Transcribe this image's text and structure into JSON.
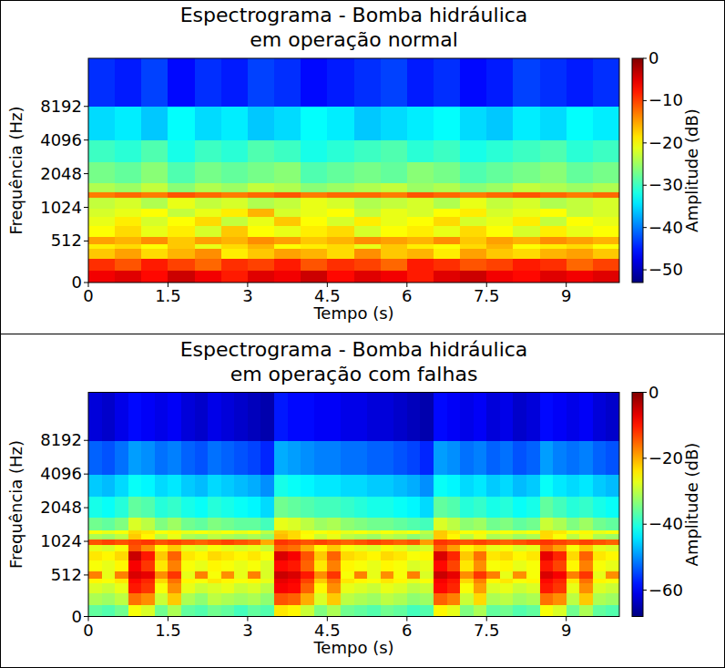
{
  "chart_data": [
    {
      "type": "heatmap",
      "title": "Espectrograma - Bomba hidráulica\nem operação normal",
      "x_label": "Tempo (s)",
      "y_label": "Frequência (Hz)",
      "xlim": [
        0,
        10
      ],
      "xticks": [
        0,
        1.5,
        3,
        4.5,
        6,
        7.5,
        9
      ],
      "ylim": [
        0,
        22050
      ],
      "yticks": [
        0,
        512,
        1024,
        2048,
        4096,
        8192
      ],
      "log": "y",
      "grid": false,
      "x_edges": [
        0,
        0.5,
        1,
        1.5,
        2,
        2.5,
        3,
        3.5,
        4,
        4.5,
        5,
        5.5,
        6,
        6.5,
        7,
        7.5,
        8,
        8.5,
        9,
        9.5,
        10
      ],
      "y_edges": [
        0,
        150,
        300,
        420,
        480,
        560,
        700,
        850,
        1000,
        1250,
        1400,
        1700,
        2600,
        4096,
        8192,
        22050
      ],
      "cells": [
        [
          -6,
          -5,
          -7,
          -4,
          -6,
          -8,
          -5,
          -6,
          -4,
          -7,
          -5,
          -6,
          -8,
          -5,
          -4,
          -6,
          -7,
          -5,
          -6,
          -5
        ],
        [
          -9,
          -11,
          -8,
          -10,
          -12,
          -9,
          -10,
          -8,
          -11,
          -9,
          -10,
          -12,
          -8,
          -9,
          -11,
          -10,
          -8,
          -9,
          -12,
          -10
        ],
        [
          -17,
          -15,
          -18,
          -16,
          -14,
          -19,
          -17,
          -15,
          -16,
          -18,
          -14,
          -17,
          -16,
          -19,
          -15,
          -17,
          -18,
          -16,
          -15,
          -17
        ],
        [
          -19,
          -18,
          -20,
          -17,
          -21,
          -18,
          -16,
          -20,
          -19,
          -18,
          -21,
          -17,
          -19,
          -20,
          -18,
          -16,
          -20,
          -19,
          -18,
          -20
        ],
        [
          -15,
          -16,
          -14,
          -17,
          -15,
          -16,
          -14,
          -15,
          -17,
          -16,
          -14,
          -15,
          -16,
          -14,
          -17,
          -15,
          -16,
          -14,
          -15,
          -16
        ],
        [
          -20,
          -18,
          -21,
          -19,
          -22,
          -17,
          -20,
          -21,
          -19,
          -18,
          -22,
          -20,
          -19,
          -21,
          -18,
          -20,
          -22,
          -19,
          -21,
          -20
        ],
        [
          -21,
          -19,
          -22,
          -20,
          -18,
          -23,
          -21,
          -17,
          -20,
          -22,
          -19,
          -21,
          -20,
          -18,
          -22,
          -21,
          -19,
          -23,
          -20,
          -21
        ],
        [
          -22,
          -21,
          -20,
          -23,
          -21,
          -19,
          -16,
          -22,
          -21,
          -20,
          -23,
          -21,
          -22,
          -20,
          -19,
          -22,
          -21,
          -20,
          -23,
          -22
        ],
        [
          -23,
          -22,
          -24,
          -21,
          -23,
          -22,
          -24,
          -23,
          -21,
          -22,
          -24,
          -23,
          -22,
          -24,
          -21,
          -23,
          -22,
          -24,
          -23,
          -22
        ],
        [
          -13,
          -12,
          -13,
          -11,
          -12,
          -13,
          -12,
          -11,
          -13,
          -12,
          -12,
          -13,
          -11,
          -12,
          -13,
          -12,
          -11,
          -12,
          -13,
          -12
        ],
        [
          -24,
          -25,
          -23,
          -26,
          -24,
          -25,
          -23,
          -24,
          -26,
          -25,
          -24,
          -23,
          -25,
          -24,
          -26,
          -25,
          -23,
          -24,
          -25,
          -24
        ],
        [
          -27,
          -28,
          -26,
          -29,
          -27,
          -28,
          -27,
          -26,
          -29,
          -28,
          -27,
          -28,
          -26,
          -27,
          -29,
          -28,
          -27,
          -26,
          -28,
          -27
        ],
        [
          -30,
          -31,
          -29,
          -32,
          -30,
          -31,
          -29,
          -30,
          -32,
          -31,
          -30,
          -29,
          -31,
          -30,
          -32,
          -31,
          -30,
          -29,
          -31,
          -30
        ],
        [
          -35,
          -34,
          -36,
          -33,
          -35,
          -34,
          -36,
          -35,
          -33,
          -34,
          -36,
          -35,
          -34,
          -33,
          -35,
          -36,
          -34,
          -35,
          -33,
          -34
        ],
        [
          -44,
          -45,
          -43,
          -46,
          -44,
          -45,
          -43,
          -44,
          -46,
          -45,
          -44,
          -43,
          -45,
          -44,
          -46,
          -45,
          -43,
          -44,
          -45,
          -44
        ]
      ],
      "colorbar": {
        "label": "Amplitude (dB)",
        "range": [
          -53,
          0
        ],
        "ticks": [
          {
            "value": 0,
            "label": "0"
          },
          {
            "value": -10,
            "label": "−10"
          },
          {
            "value": -20,
            "label": "−20"
          },
          {
            "value": -30,
            "label": "−30"
          },
          {
            "value": -40,
            "label": "−40"
          },
          {
            "value": -50,
            "label": "−50"
          }
        ]
      }
    },
    {
      "type": "heatmap",
      "title": "Espectrograma - Bomba hidráulica\nem operação com falhas",
      "x_label": "Tempo (s)",
      "y_label": "Frequência (Hz)",
      "xlim": [
        0,
        10
      ],
      "xticks": [
        0,
        1.5,
        3,
        4.5,
        6,
        7.5,
        9
      ],
      "ylim": [
        0,
        22050
      ],
      "yticks": [
        0,
        512,
        1024,
        2048,
        4096,
        8192
      ],
      "log": "y",
      "grid": false,
      "x_edges": [
        0,
        0.25,
        0.5,
        0.75,
        1,
        1.25,
        1.5,
        1.75,
        2,
        2.25,
        2.5,
        2.75,
        3,
        3.25,
        3.5,
        3.75,
        4,
        4.25,
        4.5,
        4.75,
        5,
        5.25,
        5.5,
        5.75,
        6,
        6.25,
        6.5,
        6.75,
        7,
        7.25,
        7.5,
        7.75,
        8,
        8.25,
        8.5,
        8.75,
        9,
        9.25,
        9.5,
        9.75,
        10
      ],
      "y_edges": [
        0,
        150,
        300,
        420,
        480,
        560,
        700,
        850,
        960,
        1080,
        1200,
        1300,
        1700,
        2600,
        4096,
        8192,
        22050
      ],
      "cells": [
        [
          -36,
          -37,
          -35,
          -26,
          -28,
          -35,
          -31,
          -36,
          -37,
          -35,
          -36,
          -38,
          -36,
          -37,
          -24,
          -25,
          -29,
          -34,
          -31,
          -35,
          -36,
          -37,
          -35,
          -36,
          -38,
          -37,
          -25,
          -27,
          -34,
          -31,
          -36,
          -35,
          -37,
          -36,
          -26,
          -28,
          -35,
          -31,
          -36,
          -37
        ],
        [
          -31,
          -32,
          -30,
          -16,
          -18,
          -29,
          -22,
          -31,
          -33,
          -30,
          -31,
          -32,
          -31,
          -33,
          -14,
          -15,
          -20,
          -28,
          -22,
          -30,
          -31,
          -32,
          -30,
          -31,
          -33,
          -32,
          -15,
          -17,
          -29,
          -23,
          -31,
          -30,
          -32,
          -31,
          -16,
          -18,
          -30,
          -22,
          -31,
          -32
        ],
        [
          -28,
          -29,
          -27,
          -10,
          -12,
          -26,
          -18,
          -27,
          -29,
          -28,
          -27,
          -29,
          -28,
          -30,
          -8,
          -9,
          -15,
          -25,
          -18,
          -27,
          -28,
          -29,
          -27,
          -28,
          -30,
          -29,
          -9,
          -11,
          -26,
          -19,
          -28,
          -27,
          -29,
          -28,
          -10,
          -12,
          -27,
          -18,
          -28,
          -29
        ],
        [
          -25,
          -26,
          -24,
          -9,
          -11,
          -23,
          -16,
          -25,
          -26,
          -24,
          -25,
          -26,
          -25,
          -27,
          -7,
          -8,
          -13,
          -22,
          -16,
          -24,
          -25,
          -26,
          -24,
          -25,
          -27,
          -26,
          -8,
          -10,
          -23,
          -17,
          -25,
          -24,
          -26,
          -25,
          -9,
          -11,
          -24,
          -16,
          -25,
          -26
        ],
        [
          -17,
          -27,
          -17,
          -6,
          -7,
          -18,
          -12,
          -27,
          -17,
          -26,
          -18,
          -27,
          -17,
          -28,
          -5,
          -6,
          -10,
          -18,
          -12,
          -26,
          -17,
          -27,
          -18,
          -26,
          -17,
          -28,
          -5,
          -7,
          -18,
          -12,
          -17,
          -27,
          -18,
          -26,
          -6,
          -8,
          -17,
          -12,
          -27,
          -18
        ],
        [
          -26,
          -27,
          -25,
          -8,
          -12,
          -24,
          -17,
          -26,
          -27,
          -25,
          -26,
          -27,
          -26,
          -28,
          -9,
          -10,
          -15,
          -24,
          -17,
          -25,
          -26,
          -27,
          -25,
          -26,
          -28,
          -27,
          -9,
          -13,
          -24,
          -18,
          -26,
          -25,
          -27,
          -26,
          -10,
          -13,
          -25,
          -17,
          -26,
          -27
        ],
        [
          -24,
          -25,
          -23,
          -5,
          -10,
          -22,
          -15,
          -24,
          -25,
          -23,
          -24,
          -25,
          -24,
          -26,
          -6,
          -8,
          -14,
          -22,
          -15,
          -23,
          -24,
          -25,
          -23,
          -24,
          -26,
          -25,
          -6,
          -11,
          -22,
          -16,
          -24,
          -23,
          -25,
          -24,
          -7,
          -11,
          -23,
          -15,
          -24,
          -25
        ],
        [
          -27,
          -28,
          -26,
          -14,
          -18,
          -25,
          -22,
          -27,
          -28,
          -26,
          -27,
          -28,
          -27,
          -29,
          -15,
          -16,
          -20,
          -25,
          -22,
          -26,
          -27,
          -28,
          -26,
          -27,
          -29,
          -28,
          -15,
          -19,
          -25,
          -23,
          -27,
          -26,
          -28,
          -27,
          -16,
          -19,
          -26,
          -22,
          -27,
          -28
        ],
        [
          -14,
          -13,
          -14,
          -13,
          -12,
          -14,
          -13,
          -14,
          -15,
          -14,
          -13,
          -14,
          -15,
          -20,
          -12,
          -13,
          -14,
          -13,
          -14,
          -15,
          -14,
          -13,
          -14,
          -15,
          -14,
          -19,
          -12,
          -13,
          -14,
          -13,
          -14,
          -15,
          -14,
          -13,
          -12,
          -13,
          -14,
          -13,
          -14,
          -15
        ],
        [
          -31,
          -32,
          -30,
          -22,
          -25,
          -30,
          -27,
          -31,
          -32,
          -30,
          -31,
          -32,
          -31,
          -33,
          -21,
          -23,
          -26,
          -29,
          -27,
          -30,
          -31,
          -32,
          -30,
          -31,
          -33,
          -32,
          -22,
          -25,
          -30,
          -27,
          -31,
          -30,
          -32,
          -31,
          -23,
          -26,
          -30,
          -27,
          -31,
          -32
        ],
        [
          -26,
          -27,
          -26,
          -23,
          -24,
          -26,
          -25,
          -27,
          -26,
          -27,
          -26,
          -27,
          -26,
          -30,
          -22,
          -23,
          -25,
          -26,
          -25,
          -27,
          -26,
          -27,
          -26,
          -27,
          -26,
          -30,
          -22,
          -24,
          -26,
          -25,
          -27,
          -26,
          -27,
          -26,
          -23,
          -24,
          -26,
          -25,
          -27,
          -26
        ],
        [
          -35,
          -36,
          -34,
          -28,
          -30,
          -34,
          -32,
          -35,
          -36,
          -34,
          -35,
          -36,
          -36,
          -38,
          -27,
          -28,
          -30,
          -32,
          -31,
          -33,
          -34,
          -35,
          -35,
          -36,
          -37,
          -38,
          -28,
          -30,
          -33,
          -32,
          -35,
          -34,
          -36,
          -35,
          -29,
          -31,
          -34,
          -32,
          -35,
          -36
        ],
        [
          -41,
          -42,
          -40,
          -36,
          -37,
          -40,
          -39,
          -41,
          -42,
          -40,
          -41,
          -42,
          -43,
          -45,
          -35,
          -36,
          -37,
          -38,
          -38,
          -39,
          -40,
          -41,
          -41,
          -42,
          -43,
          -45,
          -36,
          -37,
          -40,
          -39,
          -41,
          -40,
          -42,
          -41,
          -36,
          -38,
          -40,
          -39,
          -41,
          -42
        ],
        [
          -46,
          -47,
          -45,
          -42,
          -43,
          -45,
          -44,
          -46,
          -47,
          -45,
          -46,
          -47,
          -48,
          -50,
          -41,
          -42,
          -43,
          -44,
          -44,
          -45,
          -45,
          -46,
          -46,
          -47,
          -48,
          -50,
          -42,
          -43,
          -45,
          -44,
          -46,
          -45,
          -47,
          -46,
          -42,
          -44,
          -45,
          -44,
          -46,
          -47
        ],
        [
          -53,
          -54,
          -52,
          -49,
          -50,
          -52,
          -51,
          -53,
          -54,
          -52,
          -53,
          -54,
          -55,
          -57,
          -48,
          -49,
          -50,
          -51,
          -51,
          -52,
          -52,
          -53,
          -53,
          -54,
          -55,
          -57,
          -49,
          -50,
          -52,
          -51,
          -53,
          -52,
          -54,
          -53,
          -49,
          -51,
          -52,
          -51,
          -53,
          -54
        ],
        [
          -62,
          -63,
          -61,
          -59,
          -60,
          -61,
          -60,
          -62,
          -63,
          -61,
          -62,
          -63,
          -64,
          -65,
          -58,
          -59,
          -59,
          -60,
          -60,
          -61,
          -61,
          -62,
          -62,
          -63,
          -64,
          -65,
          -59,
          -60,
          -61,
          -60,
          -62,
          -61,
          -63,
          -62,
          -59,
          -60,
          -61,
          -60,
          -62,
          -63
        ]
      ],
      "colorbar": {
        "label": "Amplitude (dB)",
        "range": [
          -68,
          0
        ],
        "ticks": [
          {
            "value": 0,
            "label": "0"
          },
          {
            "value": -20,
            "label": "−20"
          },
          {
            "value": -40,
            "label": "−40"
          },
          {
            "value": -60,
            "label": "−60"
          }
        ]
      }
    }
  ]
}
